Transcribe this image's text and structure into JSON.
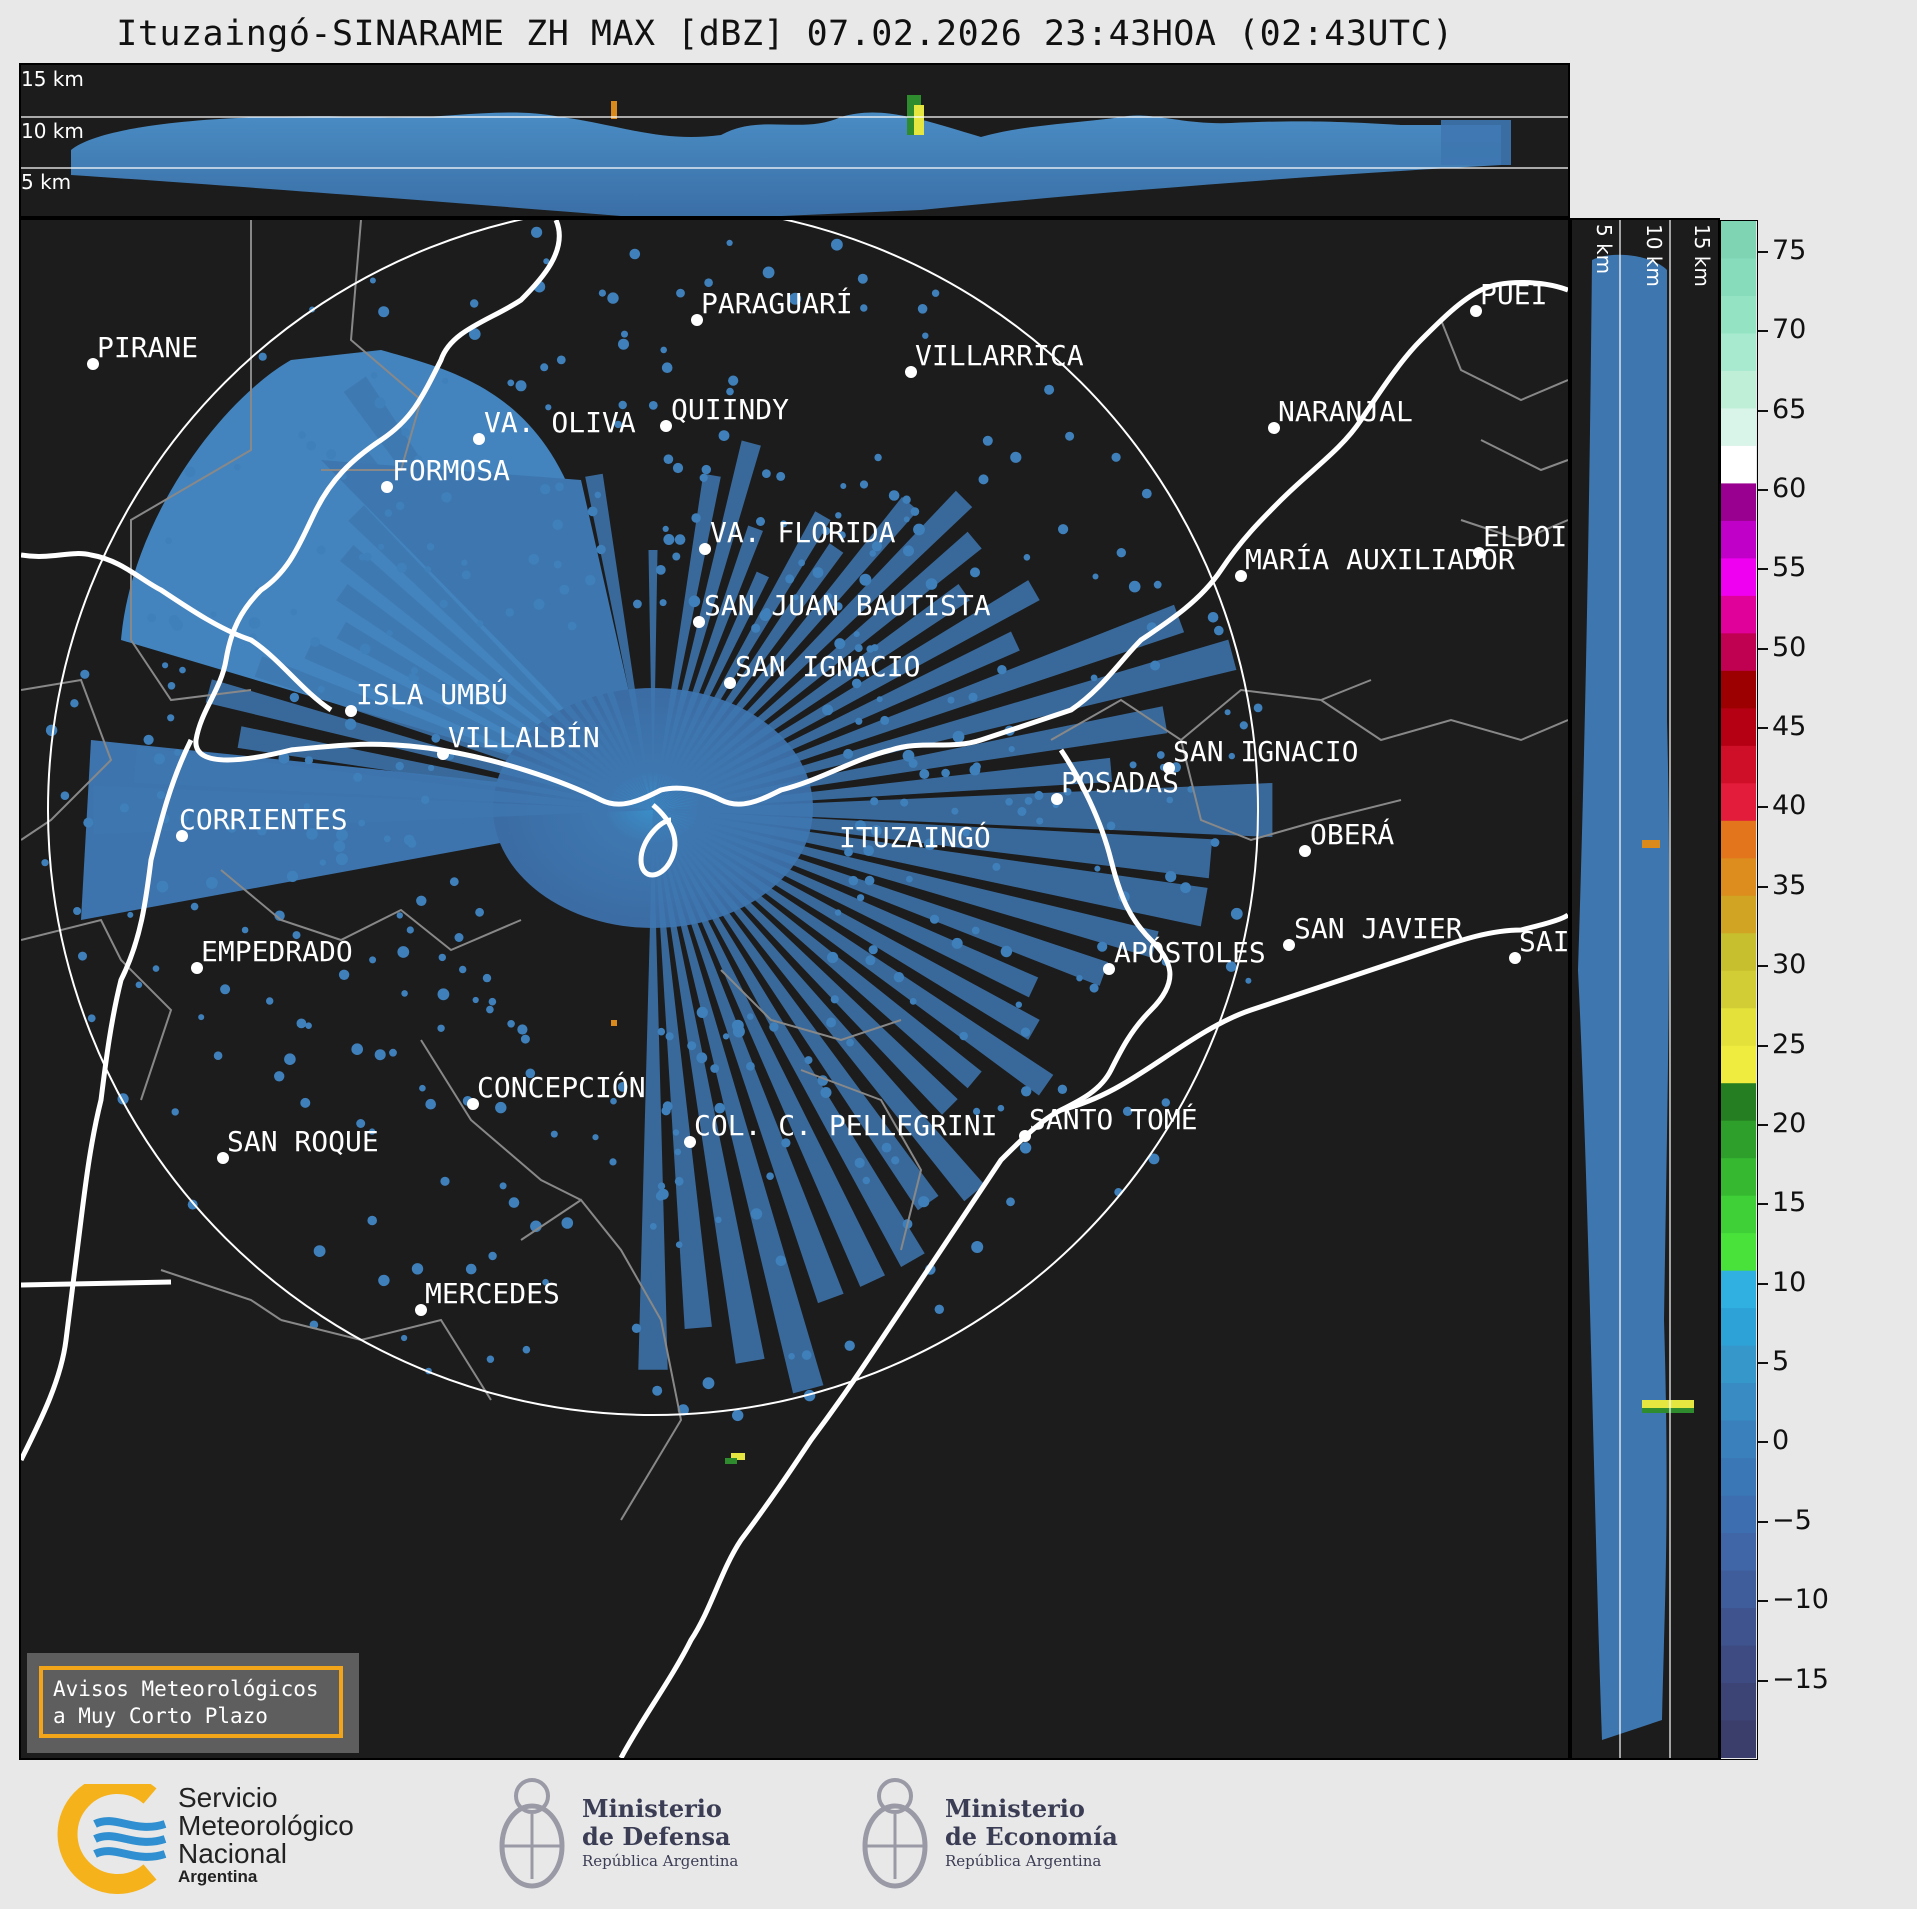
{
  "title": "Ituzaingó-SINARAME ZH MAX [dBZ] 07.02.2026 23:43HOA (02:43UTC)",
  "top_section": {
    "altitude_labels": [
      "15 km",
      "10 km",
      "5 km"
    ]
  },
  "right_section": {
    "altitude_labels": [
      "5 km",
      "10 km",
      "15 km"
    ]
  },
  "map": {
    "center_label": "ITUZAINGÓ",
    "places": [
      {
        "name": "PARAGUARÍ"
      },
      {
        "name": "VILLARRICA"
      },
      {
        "name": "PIRANE"
      },
      {
        "name": "QUIINDY"
      },
      {
        "name": "VA. OLIVA"
      },
      {
        "name": "FORMOSA"
      },
      {
        "name": "NARANJAL"
      },
      {
        "name": "PUEI"
      },
      {
        "name": "VA. FLORIDA"
      },
      {
        "name": "ELDOI"
      },
      {
        "name": "MARÍA AUXILIADOR"
      },
      {
        "name": "SAN JUAN BAUTISTA"
      },
      {
        "name": "SAN IGNACIO"
      },
      {
        "name": "ISLA UMBÚ"
      },
      {
        "name": "VILLALBÍN"
      },
      {
        "name": "SAN IGNACIO"
      },
      {
        "name": "POSADAS"
      },
      {
        "name": "CORRIENTES"
      },
      {
        "name": "OBERÁ"
      },
      {
        "name": "ITUZAINGÓ"
      },
      {
        "name": "APÓSTOLES"
      },
      {
        "name": "SAN JAVIER"
      },
      {
        "name": "SAI"
      },
      {
        "name": "EMPEDRADO"
      },
      {
        "name": "CONCEPCIÓN"
      },
      {
        "name": "COL. C. PELLEGRINI"
      },
      {
        "name": "SANTO TOMÉ"
      },
      {
        "name": "SAN ROQUE"
      },
      {
        "name": "MERCEDES"
      }
    ]
  },
  "colorbar": {
    "ticks": [
      "75",
      "70",
      "65",
      "60",
      "55",
      "50",
      "45",
      "40",
      "35",
      "30",
      "25",
      "20",
      "15",
      "10",
      "5",
      "0",
      "−5",
      "−10",
      "−15"
    ],
    "unit": "dBZ",
    "range": [
      -20,
      77
    ]
  },
  "aviso": {
    "line1": "Avisos Meteorológicos",
    "line2": "a Muy Corto Plazo"
  },
  "footer": {
    "smn_line1": "Servicio",
    "smn_line2": "Meteorológico",
    "smn_line3": "Nacional",
    "smn_line4": "Argentina",
    "defensa_line1": "Ministerio",
    "defensa_line2": "de Defensa",
    "defensa_sub": "República Argentina",
    "economia_line1": "Ministerio",
    "economia_line2": "de Economía",
    "economia_sub": "República Argentina"
  },
  "colors": {
    "background": "#1c1c1c",
    "echo_main": "#3e77b0",
    "echo_light": "#4a8cc4",
    "echo_dark": "#3b5f90",
    "river": "#ffffff",
    "border": "#8a8a8a",
    "aviso_border": "#f3a51a",
    "smn_yellow": "#f6b21b",
    "smn_blue": "#2f8fd0"
  }
}
